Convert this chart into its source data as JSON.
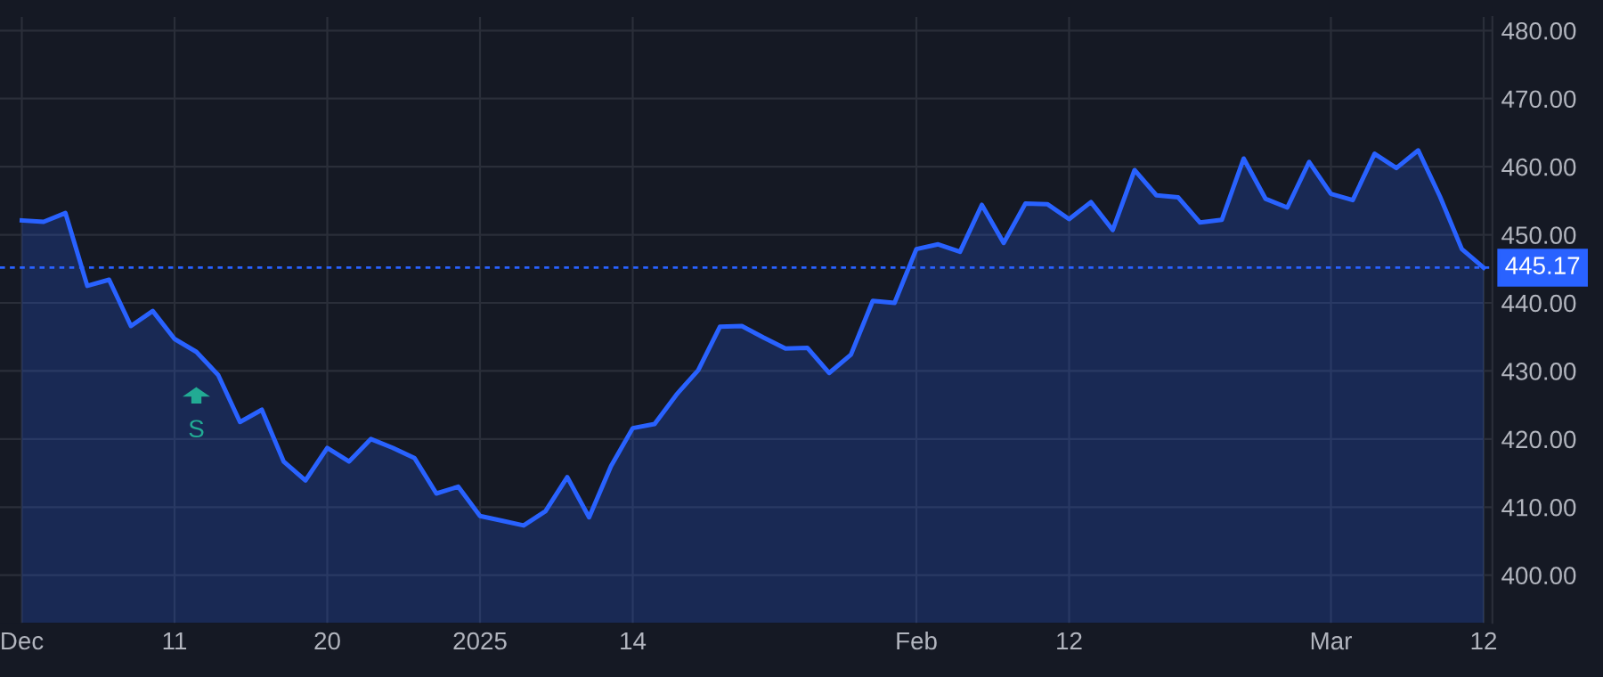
{
  "chart_data": {
    "type": "area",
    "categories": [
      "Dec",
      null,
      null,
      null,
      null,
      null,
      null,
      "11",
      null,
      null,
      null,
      null,
      null,
      null,
      "20",
      null,
      null,
      null,
      null,
      null,
      null,
      "2025",
      null,
      null,
      null,
      null,
      null,
      null,
      "14",
      null,
      null,
      null,
      null,
      null,
      null,
      null,
      null,
      null,
      null,
      null,
      null,
      "Feb",
      null,
      null,
      null,
      null,
      null,
      null,
      "12",
      null,
      null,
      null,
      null,
      null,
      null,
      null,
      null,
      null,
      null,
      null,
      "Mar",
      null,
      null,
      null,
      null,
      null,
      null,
      "12"
    ],
    "series": [
      {
        "color": "#2962ff",
        "values": [
          452.1,
          451.9,
          453.2,
          442.5,
          443.4,
          436.6,
          438.8,
          434.7,
          432.8,
          429.4,
          422.5,
          424.3,
          416.7,
          413.9,
          418.7,
          416.7,
          420.0,
          418.7,
          417.2,
          412.0,
          413.0,
          408.7,
          408.0,
          407.3,
          409.4,
          414.4,
          408.5,
          416.0,
          421.6,
          422.2,
          426.5,
          430.1,
          436.5,
          436.6,
          434.9,
          433.3,
          433.4,
          429.7,
          432.4,
          440.3,
          440.0,
          447.9,
          448.6,
          447.5,
          454.4,
          448.8,
          454.6,
          454.5,
          452.3,
          454.8,
          450.7,
          459.5,
          455.8,
          455.5,
          451.8,
          452.2,
          461.2,
          455.3,
          454.0,
          460.7,
          456.0,
          455.1,
          461.9,
          459.8,
          462.4,
          455.6,
          447.9,
          445.17
        ]
      }
    ],
    "ylim": [
      393,
      482
    ],
    "yticks": [
      {
        "value": 400,
        "label": "400.00"
      },
      {
        "value": 410,
        "label": "410.00"
      },
      {
        "value": 420,
        "label": "420.00"
      },
      {
        "value": 430,
        "label": "430.00"
      },
      {
        "value": 440,
        "label": "440.00"
      },
      {
        "value": 450,
        "label": "450.00"
      },
      {
        "value": 460,
        "label": "460.00"
      },
      {
        "value": 470,
        "label": "470.00"
      },
      {
        "value": 480,
        "label": "480.00"
      }
    ],
    "ref_lines": [
      {
        "axis": "y",
        "value": 445.17,
        "label": "445.17",
        "color": "#2962ff",
        "line_style": "dotted"
      }
    ],
    "annotations": [
      "S"
    ],
    "grid": true
  }
}
